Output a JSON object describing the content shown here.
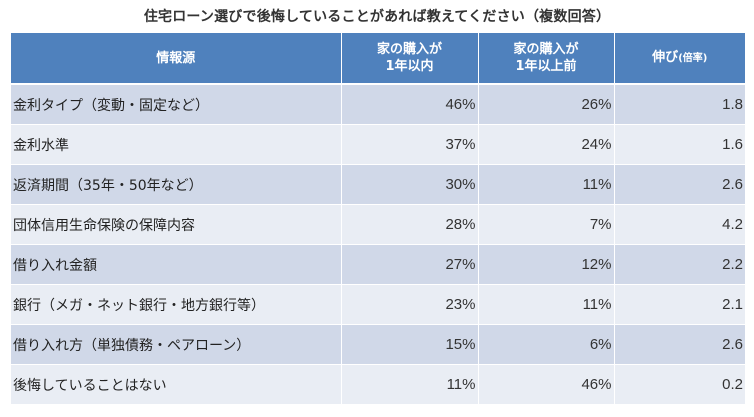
{
  "title": "住宅ローン選びで後悔していることがあれば教えてください（複数回答）",
  "table": {
    "headers": {
      "source": "情報源",
      "within_1yr": [
        "家の購入が",
        "1年以内"
      ],
      "over_1yr": [
        "家の購入が",
        "1年以上前"
      ],
      "growth": "伸び",
      "growth_unit": "(倍率)"
    },
    "rows": [
      {
        "label": "金利タイプ（変動・固定など）",
        "within": "46%",
        "before": "26%",
        "ratio": "1.8"
      },
      {
        "label": "金利水準",
        "within": "37%",
        "before": "24%",
        "ratio": "1.6"
      },
      {
        "label": "返済期間（35年・50年など）",
        "within": "30%",
        "before": "11%",
        "ratio": "2.6"
      },
      {
        "label": "団体信用生命保険の保障内容",
        "within": "28%",
        "before": "7%",
        "ratio": "4.2"
      },
      {
        "label": "借り入れ金額",
        "within": "27%",
        "before": "12%",
        "ratio": "2.2"
      },
      {
        "label": "銀行（メガ・ネット銀行・地方銀行等）",
        "within": "23%",
        "before": "11%",
        "ratio": "2.1"
      },
      {
        "label": "借り入れ方（単独債務・ペアローン）",
        "within": "15%",
        "before": "6%",
        "ratio": "2.6"
      },
      {
        "label": "後悔していることはない",
        "within": "11%",
        "before": "46%",
        "ratio": "0.2"
      }
    ]
  },
  "colors": {
    "header_bg": "#4f81bd",
    "row_dark": "#d0d8e8",
    "row_light": "#e9edf4"
  }
}
